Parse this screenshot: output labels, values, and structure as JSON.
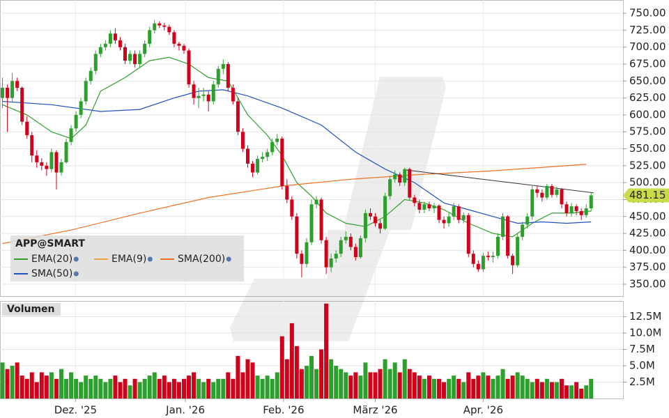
{
  "chart_data": {
    "type": "candlestick",
    "title": "APP@SMART",
    "volume_title": "Volumen",
    "candles": [
      [
        625,
        655,
        610,
        640
      ],
      [
        640,
        645,
        575,
        625
      ],
      [
        625,
        662,
        620,
        650
      ],
      [
        650,
        655,
        635,
        640
      ],
      [
        640,
        642,
        585,
        590
      ],
      [
        590,
        598,
        565,
        570
      ],
      [
        570,
        575,
        530,
        540
      ],
      [
        540,
        548,
        522,
        530
      ],
      [
        530,
        536,
        518,
        525
      ],
      [
        525,
        530,
        510,
        520
      ],
      [
        520,
        550,
        515,
        545
      ],
      [
        545,
        548,
        490,
        515
      ],
      [
        515,
        535,
        510,
        530
      ],
      [
        530,
        565,
        528,
        560
      ],
      [
        560,
        585,
        555,
        580
      ],
      [
        580,
        605,
        575,
        600
      ],
      [
        600,
        625,
        595,
        620
      ],
      [
        620,
        655,
        615,
        650
      ],
      [
        650,
        670,
        645,
        665
      ],
      [
        665,
        695,
        660,
        690
      ],
      [
        690,
        705,
        685,
        700
      ],
      [
        700,
        710,
        695,
        705
      ],
      [
        705,
        725,
        700,
        720
      ],
      [
        720,
        728,
        705,
        710
      ],
      [
        710,
        715,
        695,
        700
      ],
      [
        700,
        705,
        675,
        680
      ],
      [
        680,
        695,
        675,
        690
      ],
      [
        690,
        695,
        670,
        675
      ],
      [
        675,
        695,
        670,
        690
      ],
      [
        690,
        710,
        685,
        705
      ],
      [
        705,
        730,
        700,
        725
      ],
      [
        725,
        740,
        720,
        735
      ],
      [
        735,
        738,
        728,
        732
      ],
      [
        732,
        736,
        725,
        730
      ],
      [
        730,
        733,
        718,
        722
      ],
      [
        722,
        725,
        700,
        705
      ],
      [
        705,
        708,
        695,
        702
      ],
      [
        702,
        705,
        690,
        695
      ],
      [
        695,
        698,
        640,
        645
      ],
      [
        645,
        650,
        615,
        625
      ],
      [
        625,
        640,
        610,
        628
      ],
      [
        628,
        640,
        620,
        630
      ],
      [
        630,
        635,
        605,
        620
      ],
      [
        620,
        650,
        615,
        645
      ],
      [
        645,
        672,
        640,
        668
      ],
      [
        668,
        682,
        660,
        675
      ],
      [
        675,
        678,
        635,
        640
      ],
      [
        640,
        645,
        615,
        620
      ],
      [
        620,
        625,
        570,
        575
      ],
      [
        575,
        580,
        545,
        550
      ],
      [
        550,
        555,
        522,
        528
      ],
      [
        528,
        532,
        508,
        515
      ],
      [
        515,
        540,
        512,
        535
      ],
      [
        535,
        545,
        530,
        538
      ],
      [
        538,
        550,
        532,
        545
      ],
      [
        545,
        565,
        540,
        560
      ],
      [
        560,
        572,
        555,
        565
      ],
      [
        565,
        568,
        490,
        495
      ],
      [
        495,
        505,
        470,
        475
      ],
      [
        475,
        480,
        445,
        450
      ],
      [
        450,
        455,
        388,
        395
      ],
      [
        395,
        400,
        360,
        380
      ],
      [
        380,
        418,
        375,
        412
      ],
      [
        412,
        475,
        408,
        468
      ],
      [
        468,
        480,
        462,
        475
      ],
      [
        475,
        478,
        410,
        415
      ],
      [
        415,
        420,
        365,
        375
      ],
      [
        375,
        395,
        368,
        388
      ],
      [
        388,
        400,
        382,
        395
      ],
      [
        395,
        420,
        390,
        415
      ],
      [
        415,
        428,
        410,
        420
      ],
      [
        420,
        425,
        400,
        405
      ],
      [
        405,
        410,
        385,
        390
      ],
      [
        390,
        422,
        388,
        418
      ],
      [
        418,
        460,
        412,
        455
      ],
      [
        455,
        462,
        445,
        450
      ],
      [
        450,
        455,
        435,
        440
      ],
      [
        440,
        445,
        425,
        432
      ],
      [
        432,
        485,
        430,
        480
      ],
      [
        480,
        510,
        475,
        505
      ],
      [
        505,
        518,
        500,
        512
      ],
      [
        512,
        515,
        495,
        500
      ],
      [
        500,
        522,
        495,
        520
      ],
      [
        520,
        522,
        475,
        478
      ],
      [
        478,
        482,
        465,
        470
      ],
      [
        470,
        475,
        455,
        460
      ],
      [
        460,
        472,
        455,
        468
      ],
      [
        468,
        472,
        458,
        462
      ],
      [
        462,
        470,
        455,
        466
      ],
      [
        466,
        468,
        440,
        445
      ],
      [
        445,
        450,
        432,
        440
      ],
      [
        440,
        455,
        435,
        450
      ],
      [
        450,
        470,
        445,
        465
      ],
      [
        465,
        468,
        440,
        445
      ],
      [
        445,
        456,
        440,
        452
      ],
      [
        452,
        455,
        390,
        395
      ],
      [
        395,
        400,
        375,
        380
      ],
      [
        380,
        385,
        368,
        372
      ],
      [
        372,
        396,
        368,
        392
      ],
      [
        392,
        398,
        385,
        390
      ],
      [
        390,
        398,
        382,
        392
      ],
      [
        392,
        425,
        388,
        420
      ],
      [
        420,
        455,
        415,
        450
      ],
      [
        450,
        452,
        388,
        392
      ],
      [
        392,
        395,
        365,
        378
      ],
      [
        378,
        425,
        375,
        420
      ],
      [
        420,
        442,
        415,
        438
      ],
      [
        438,
        455,
        432,
        450
      ],
      [
        450,
        495,
        445,
        490
      ],
      [
        490,
        495,
        478,
        485
      ],
      [
        485,
        490,
        472,
        478
      ],
      [
        478,
        498,
        475,
        495
      ],
      [
        495,
        498,
        478,
        482
      ],
      [
        482,
        494,
        478,
        490
      ],
      [
        490,
        492,
        462,
        468
      ],
      [
        468,
        472,
        450,
        455
      ],
      [
        455,
        470,
        450,
        465
      ],
      [
        465,
        468,
        452,
        458
      ],
      [
        458,
        462,
        445,
        452
      ],
      [
        452,
        468,
        448,
        462
      ],
      [
        462,
        485,
        458,
        481.15
      ]
    ],
    "volumes": [
      5.5,
      4.5,
      5,
      5.5,
      3.5,
      3,
      4,
      2.5,
      4,
      3.5,
      4,
      3,
      4.5,
      3,
      4,
      3,
      2.5,
      3.5,
      3,
      3.5,
      3,
      2.5,
      3,
      3.5,
      2.5,
      3,
      2,
      3,
      2.5,
      3,
      3.5,
      4,
      3,
      3.5,
      2.5,
      3,
      2.5,
      3,
      3.5,
      4,
      3,
      2.5,
      3,
      2.5,
      3,
      3,
      4,
      3,
      6.5,
      4,
      6,
      5.5,
      3.5,
      3,
      3.5,
      3,
      4,
      9.5,
      6,
      11.5,
      8,
      4.5,
      5,
      6.5,
      4.5,
      7.5,
      14.5,
      6,
      5,
      4.5,
      4,
      3.5,
      4,
      3.5,
      5.5,
      4,
      4,
      4.5,
      6,
      4.5,
      5.5,
      4,
      6,
      4.5,
      4,
      3.5,
      3,
      3.5,
      3,
      3,
      2.5,
      3,
      3.5,
      3,
      2.5,
      4,
      3,
      3.5,
      4,
      3.5,
      3,
      3.5,
      4.5,
      3,
      3.5,
      4,
      3.5,
      3,
      2.5,
      3,
      2.5,
      3,
      2.5,
      2.5,
      3,
      2,
      2,
      2.5,
      1.5,
      2,
      3
    ],
    "up_color": "#2ca02c",
    "down_color": "#d0021b",
    "indicators": [
      {
        "name": "EMA(20)",
        "color": "#2ca02c",
        "x": [
          0,
          5,
          10,
          14,
          17,
          20,
          25,
          30,
          34,
          38,
          42,
          46,
          50,
          54,
          57,
          60,
          63,
          66,
          70,
          74,
          78,
          82,
          86,
          90,
          95,
          100,
          104,
          108,
          112,
          116,
          120
        ],
        "values": [
          615,
          600,
          575,
          565,
          585,
          635,
          655,
          680,
          685,
          675,
          655,
          650,
          600,
          570,
          540,
          500,
          480,
          455,
          440,
          435,
          450,
          475,
          470,
          460,
          440,
          425,
          420,
          440,
          455,
          455,
          458
        ]
      },
      {
        "name": "EMA(9)",
        "color": "#f0a040"
      },
      {
        "name": "SMA(200)",
        "color": "#f07020",
        "x": [
          0,
          14,
          28,
          42,
          57,
          71,
          85,
          99,
          119
        ],
        "values": [
          410,
          430,
          455,
          478,
          495,
          505,
          512,
          517,
          527
        ]
      },
      {
        "name": "SMA(50)",
        "color": "#2050c0",
        "x": [
          0,
          10,
          20,
          28,
          35,
          40,
          45,
          50,
          57,
          65,
          72,
          78,
          84,
          90,
          95,
          100,
          105,
          110,
          115,
          120
        ],
        "values": [
          620,
          615,
          605,
          608,
          625,
          635,
          637,
          628,
          610,
          585,
          545,
          520,
          500,
          470,
          460,
          450,
          440,
          442,
          440,
          442
        ]
      }
    ],
    "trendline": {
      "x": [
        82,
        120.5
      ],
      "values": [
        519,
        485
      ],
      "color": "#333333"
    },
    "last_price": 481.15,
    "last_price_color": "#c8dc4a",
    "xlim": [
      -0.5,
      126.5
    ],
    "xticks": [
      {
        "value": 14.9,
        "label": "Dez. '25"
      },
      {
        "value": 37.3,
        "label": "Jan. '26"
      },
      {
        "value": 57.3,
        "label": "Feb. '26"
      },
      {
        "value": 76,
        "label": "März '26"
      },
      {
        "value": 98,
        "label": "Apr. '26"
      }
    ],
    "ylim": [
      332.5,
      769.6
    ],
    "yticks": [
      {
        "value": 350,
        "label": "350.00"
      },
      {
        "value": 375,
        "label": "375.00"
      },
      {
        "value": 400,
        "label": "400.00"
      },
      {
        "value": 425,
        "label": "425.00"
      },
      {
        "value": 450,
        "label": "450.00"
      },
      {
        "value": 475,
        "label": "475.00"
      },
      {
        "value": 500,
        "label": "500.00"
      },
      {
        "value": 525,
        "label": "525.00"
      },
      {
        "value": 550,
        "label": "550.00"
      },
      {
        "value": 575,
        "label": "575.00"
      },
      {
        "value": 600,
        "label": "600.00"
      },
      {
        "value": 625,
        "label": "625.00"
      },
      {
        "value": 650,
        "label": "650.00"
      },
      {
        "value": 675,
        "label": "675.00"
      },
      {
        "value": 700,
        "label": "700.00"
      },
      {
        "value": 725,
        "label": "725.00"
      },
      {
        "value": 750,
        "label": "750.00"
      }
    ],
    "y2lim": [
      0,
      14.9
    ],
    "y2ticks": [
      {
        "value": 2.5,
        "label": "2.5M"
      },
      {
        "value": 5,
        "label": "5.0M"
      },
      {
        "value": 7.5,
        "label": "7.5M"
      },
      {
        "value": 10,
        "label": "10.0M"
      },
      {
        "value": 12.5,
        "label": "12.5M"
      }
    ],
    "grid": true
  }
}
